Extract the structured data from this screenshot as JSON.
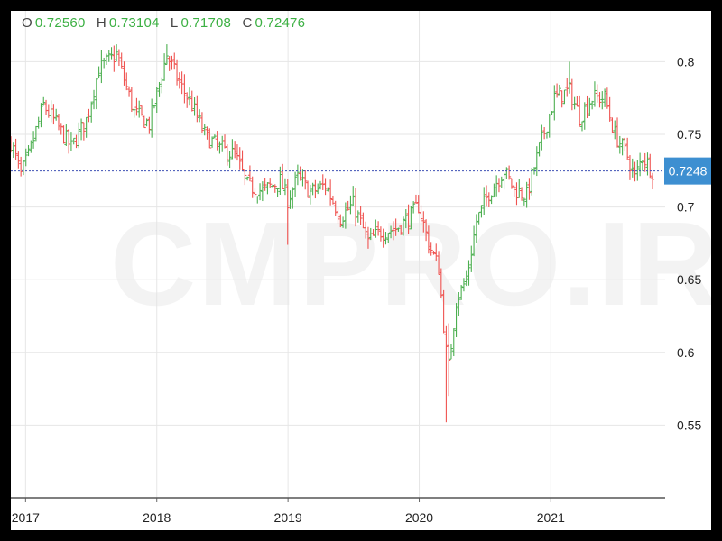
{
  "ohlc": {
    "o_key": "O",
    "o_val": "0.72560",
    "h_key": "H",
    "h_val": "0.73104",
    "l_key": "L",
    "l_val": "0.71708",
    "c_key": "C",
    "c_val": "0.72476"
  },
  "watermark": "CMPRO.IR",
  "colors": {
    "up": "#4caf50",
    "down": "#ef5350",
    "grid": "#e6e6e6",
    "value_green": "#3cb043",
    "price_line": "#3f51b5",
    "price_badge": "#3d8fd1",
    "axis_text": "#222222"
  },
  "chart_data": {
    "type": "ohlc",
    "title": "",
    "xlabel": "",
    "ylabel": "",
    "x_ticks": [
      "2017",
      "2018",
      "2019",
      "2020",
      "2021"
    ],
    "y_ticks": [
      0.8,
      0.75,
      0.7,
      0.65,
      0.6,
      0.55
    ],
    "y_tick_labels": [
      "0.8",
      "0.75",
      "0.7",
      "0.65",
      "0.6",
      "0.55"
    ],
    "ylim": [
      0.5,
      0.835
    ],
    "xlim": [
      "2016-11-21",
      "2021-11-15"
    ],
    "grid": true,
    "bar_interval": "weekly",
    "last_price": 0.7248,
    "last_price_label": "0.7248",
    "close_path": [
      [
        "2016-11-21",
        0.745
      ],
      [
        "2016-12-19",
        0.722
      ],
      [
        "2017-01-09",
        0.735
      ],
      [
        "2017-02-20",
        0.77
      ],
      [
        "2017-03-20",
        0.76
      ],
      [
        "2017-05-08",
        0.741
      ],
      [
        "2017-06-19",
        0.76
      ],
      [
        "2017-07-24",
        0.795
      ],
      [
        "2017-09-11",
        0.805
      ],
      [
        "2017-10-30",
        0.765
      ],
      [
        "2017-12-11",
        0.757
      ],
      [
        "2018-01-29",
        0.805
      ],
      [
        "2018-03-05",
        0.785
      ],
      [
        "2018-04-09",
        0.77
      ],
      [
        "2018-05-14",
        0.75
      ],
      [
        "2018-06-25",
        0.74
      ],
      [
        "2018-08-06",
        0.736
      ],
      [
        "2018-09-10",
        0.715
      ],
      [
        "2018-10-22",
        0.711
      ],
      [
        "2018-12-10",
        0.718
      ],
      [
        "2018-12-31",
        0.705
      ],
      [
        "2019-01-28",
        0.72
      ],
      [
        "2019-03-04",
        0.71
      ],
      [
        "2019-04-15",
        0.715
      ],
      [
        "2019-05-27",
        0.693
      ],
      [
        "2019-07-01",
        0.702
      ],
      [
        "2019-08-12",
        0.676
      ],
      [
        "2019-09-16",
        0.683
      ],
      [
        "2019-10-28",
        0.685
      ],
      [
        "2019-12-09",
        0.694
      ],
      [
        "2019-12-30",
        0.701
      ],
      [
        "2020-01-27",
        0.675
      ],
      [
        "2020-02-24",
        0.658
      ],
      [
        "2020-03-16",
        0.6
      ],
      [
        "2020-03-23",
        0.59
      ],
      [
        "2020-04-13",
        0.636
      ],
      [
        "2020-05-11",
        0.65
      ],
      [
        "2020-06-08",
        0.69
      ],
      [
        "2020-07-13",
        0.71
      ],
      [
        "2020-08-24",
        0.725
      ],
      [
        "2020-09-21",
        0.712
      ],
      [
        "2020-10-26",
        0.708
      ],
      [
        "2020-11-30",
        0.74
      ],
      [
        "2021-01-11",
        0.775
      ],
      [
        "2021-02-22",
        0.78
      ],
      [
        "2021-03-22",
        0.762
      ],
      [
        "2021-04-26",
        0.775
      ],
      [
        "2021-05-31",
        0.775
      ],
      [
        "2021-06-28",
        0.75
      ],
      [
        "2021-08-02",
        0.735
      ],
      [
        "2021-08-23",
        0.72
      ],
      [
        "2021-09-13",
        0.735
      ],
      [
        "2021-10-11",
        0.7248
      ]
    ],
    "outliers": [
      {
        "date": "2018-12-31",
        "low": 0.674
      },
      {
        "date": "2020-03-16",
        "low": 0.552
      },
      {
        "date": "2020-03-23",
        "low": 0.57,
        "high": 0.62
      },
      {
        "date": "2021-02-22",
        "high": 0.8
      },
      {
        "date": "2017-09-11",
        "high": 0.812
      },
      {
        "date": "2018-01-29",
        "high": 0.812
      }
    ]
  }
}
